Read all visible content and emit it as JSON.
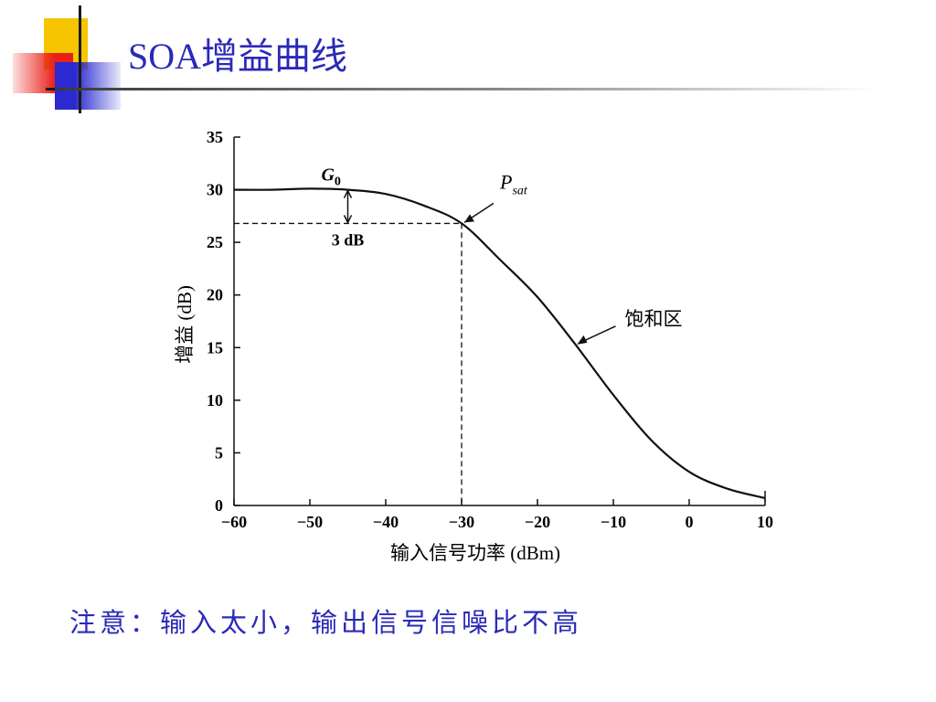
{
  "slide": {
    "title": "SOA增益曲线",
    "note": "注意：输入太小，输出信号信噪比不高"
  },
  "colors": {
    "title": "#2a2ab8",
    "note": "#2a2ab8",
    "deco_yellow": "#f7c400",
    "deco_red": "#e8201a",
    "deco_blue": "#2a2ad0",
    "curve": "#111111"
  },
  "chart_data": {
    "type": "line",
    "title": "",
    "xlabel": "输入信号功率 (dBm)",
    "ylabel": "增益 (dB)",
    "xlim": [
      -60,
      10
    ],
    "ylim": [
      0,
      35
    ],
    "x_ticks": [
      -60,
      -50,
      -40,
      -30,
      -20,
      -10,
      0,
      10
    ],
    "x_tick_labels": [
      "−60",
      "−50",
      "−40",
      "−30",
      "−20",
      "−10",
      "0",
      "10"
    ],
    "y_ticks": [
      0,
      5,
      10,
      15,
      20,
      25,
      30,
      35
    ],
    "y_tick_labels": [
      "0",
      "5",
      "10",
      "15",
      "20",
      "25",
      "30",
      "35"
    ],
    "grid": false,
    "series": [
      {
        "x": [
          -60,
          -55,
          -50,
          -45,
          -40,
          -35,
          -30,
          -25,
          -20,
          -15,
          -10,
          -5,
          0,
          5,
          10
        ],
        "y": [
          30,
          30,
          30.1,
          30,
          29.6,
          28.5,
          26.8,
          23.4,
          19.8,
          15.3,
          10.5,
          6.2,
          3.2,
          1.6,
          0.7
        ]
      }
    ],
    "annotations": {
      "g0": {
        "label": "G",
        "sub": "0"
      },
      "psat": {
        "label": "P",
        "sub": "sat",
        "x": -30,
        "y": 26.8
      },
      "drop": {
        "label": "3 dB",
        "x": -45,
        "y_top": 30,
        "y_bottom": 26.8
      },
      "saturation": {
        "label": "饱和区",
        "x": -15,
        "y": 15.3
      }
    }
  }
}
